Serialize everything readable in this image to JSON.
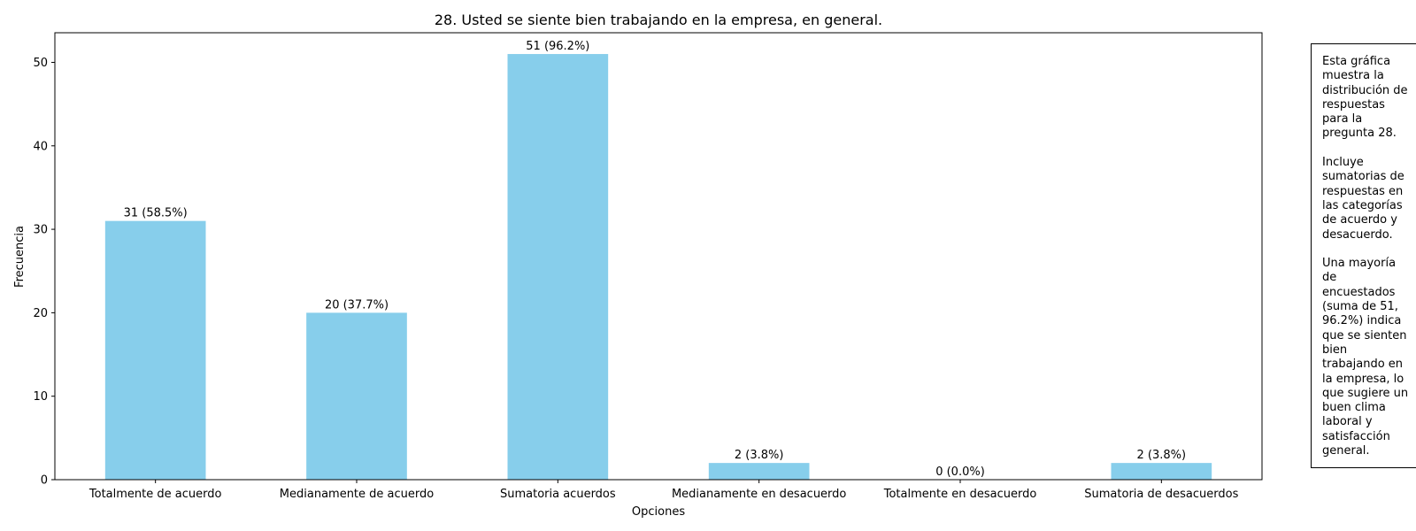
{
  "chart_data": {
    "type": "bar",
    "title": "28. Usted se siente bien trabajando en la empresa, en general.",
    "xlabel": "Opciones",
    "ylabel": "Frecuencia",
    "categories": [
      "Totalmente de acuerdo",
      "Medianamente de acuerdo",
      "Sumatoria acuerdos",
      "Medianamente en desacuerdo",
      "Totalmente en desacuerdo",
      "Sumatoria de desacuerdos"
    ],
    "values": [
      31,
      20,
      51,
      2,
      0,
      2
    ],
    "data_labels": [
      "31 (58.5%)",
      "20 (37.7%)",
      "51 (96.2%)",
      "2 (3.8%)",
      "0 (0.0%)",
      "2 (3.8%)"
    ],
    "yticks": [
      0,
      10,
      20,
      30,
      40,
      50
    ],
    "ylim": [
      0,
      53.55
    ],
    "bar_color": "#87CEEB",
    "grid": false
  },
  "note": {
    "text": "Esta gráfica\nmuestra la\ndistribución de\nrespuestas\npara la\npregunta 28.\n\nIncluye\nsumatorias de\nrespuestas en\nlas categorías\nde acuerdo y\ndesacuerdo.\n\nUna mayoría\nde\nencuestados\n(suma de 51,\n96.2%) indica\nque se sienten\nbien\ntrabajando en\nla empresa, lo\nque sugiere un\nbuen clima\nlaboral y\nsatisfacción\ngeneral."
  }
}
